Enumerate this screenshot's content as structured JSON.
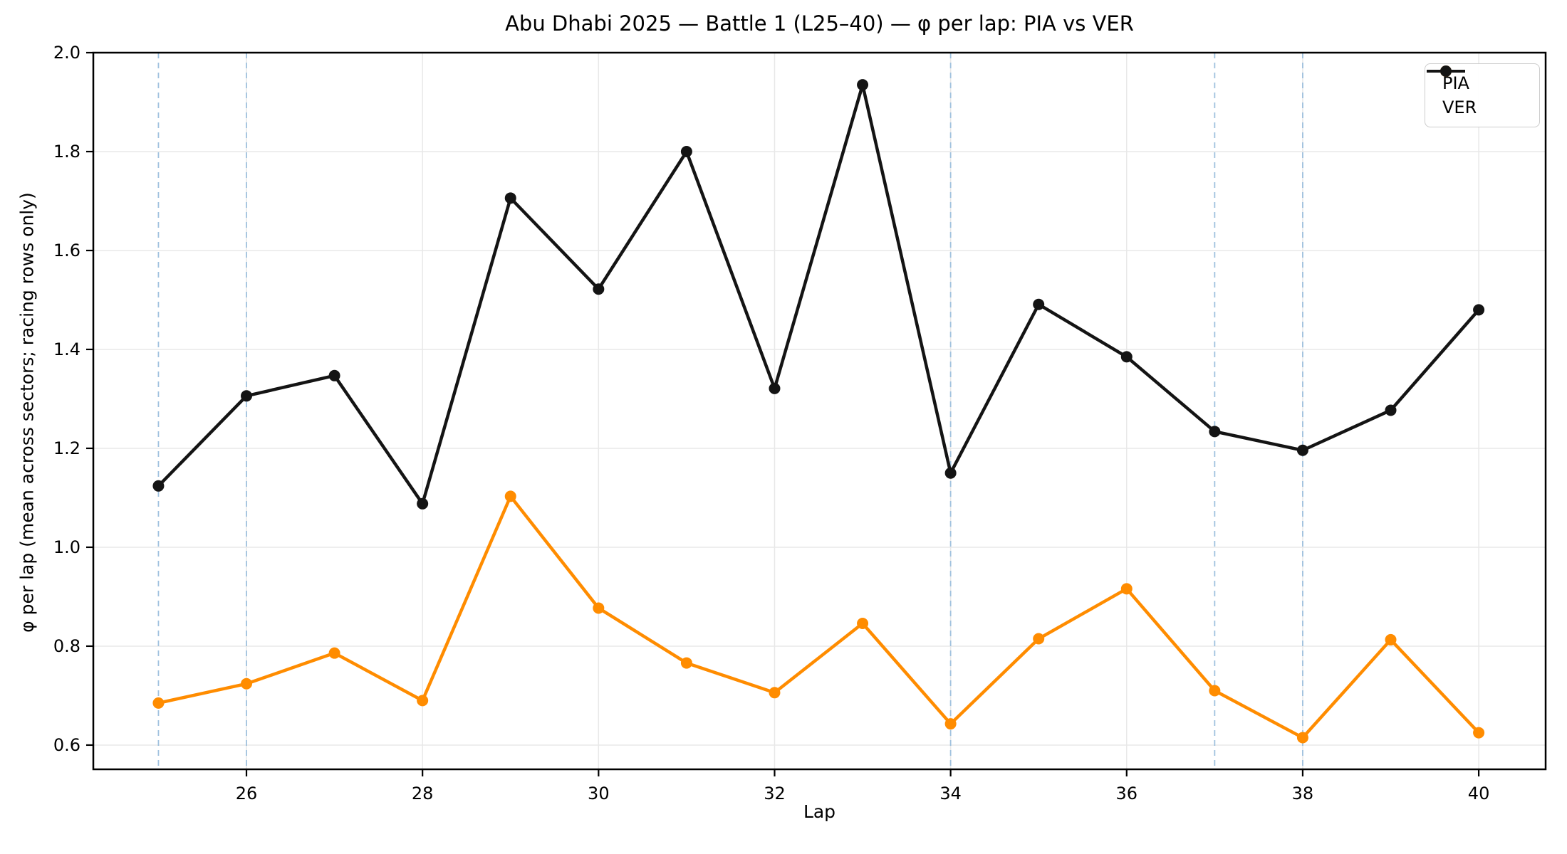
{
  "chart_data": {
    "type": "line",
    "title": "Abu Dhabi 2025 — Battle 1 (L25–40) — φ per lap: PIA vs VER",
    "xlabel": "Lap",
    "ylabel": "φ per lap (mean across sectors; racing rows only)",
    "x": [
      25,
      26,
      27,
      28,
      29,
      30,
      31,
      32,
      33,
      34,
      35,
      36,
      37,
      38,
      39,
      40
    ],
    "series": [
      {
        "name": "PIA",
        "color": "#ff8c00",
        "values": [
          0.685,
          0.724,
          0.786,
          0.69,
          1.103,
          0.877,
          0.766,
          0.706,
          0.846,
          0.643,
          0.815,
          0.916,
          0.71,
          0.615,
          0.813,
          0.625
        ]
      },
      {
        "name": "VER",
        "color": "#141414",
        "values": [
          1.124,
          1.306,
          1.347,
          1.088,
          1.706,
          1.522,
          1.8,
          1.321,
          1.935,
          1.15,
          1.491,
          1.385,
          1.234,
          1.196,
          1.277,
          1.48
        ]
      }
    ],
    "xticks": [
      26,
      28,
      30,
      32,
      34,
      36,
      38,
      40
    ],
    "yticks": [
      0.6,
      0.8,
      1.0,
      1.2,
      1.4,
      1.6,
      1.8,
      2.0
    ],
    "xlim": [
      24.26,
      40.76
    ],
    "ylim": [
      0.551,
      2.0
    ],
    "grid": true,
    "legend_position": "upper right",
    "event_lap_lines": {
      "laps": [
        25,
        26,
        34,
        37,
        38
      ],
      "color": "#9fc1de",
      "style": "dashed"
    },
    "colors": {
      "grid": "#e8e8e8",
      "spine": "#000000",
      "tick_label": "#000000",
      "background": "#ffffff"
    }
  },
  "legend": {
    "items": [
      {
        "label": "PIA"
      },
      {
        "label": "VER"
      }
    ]
  }
}
